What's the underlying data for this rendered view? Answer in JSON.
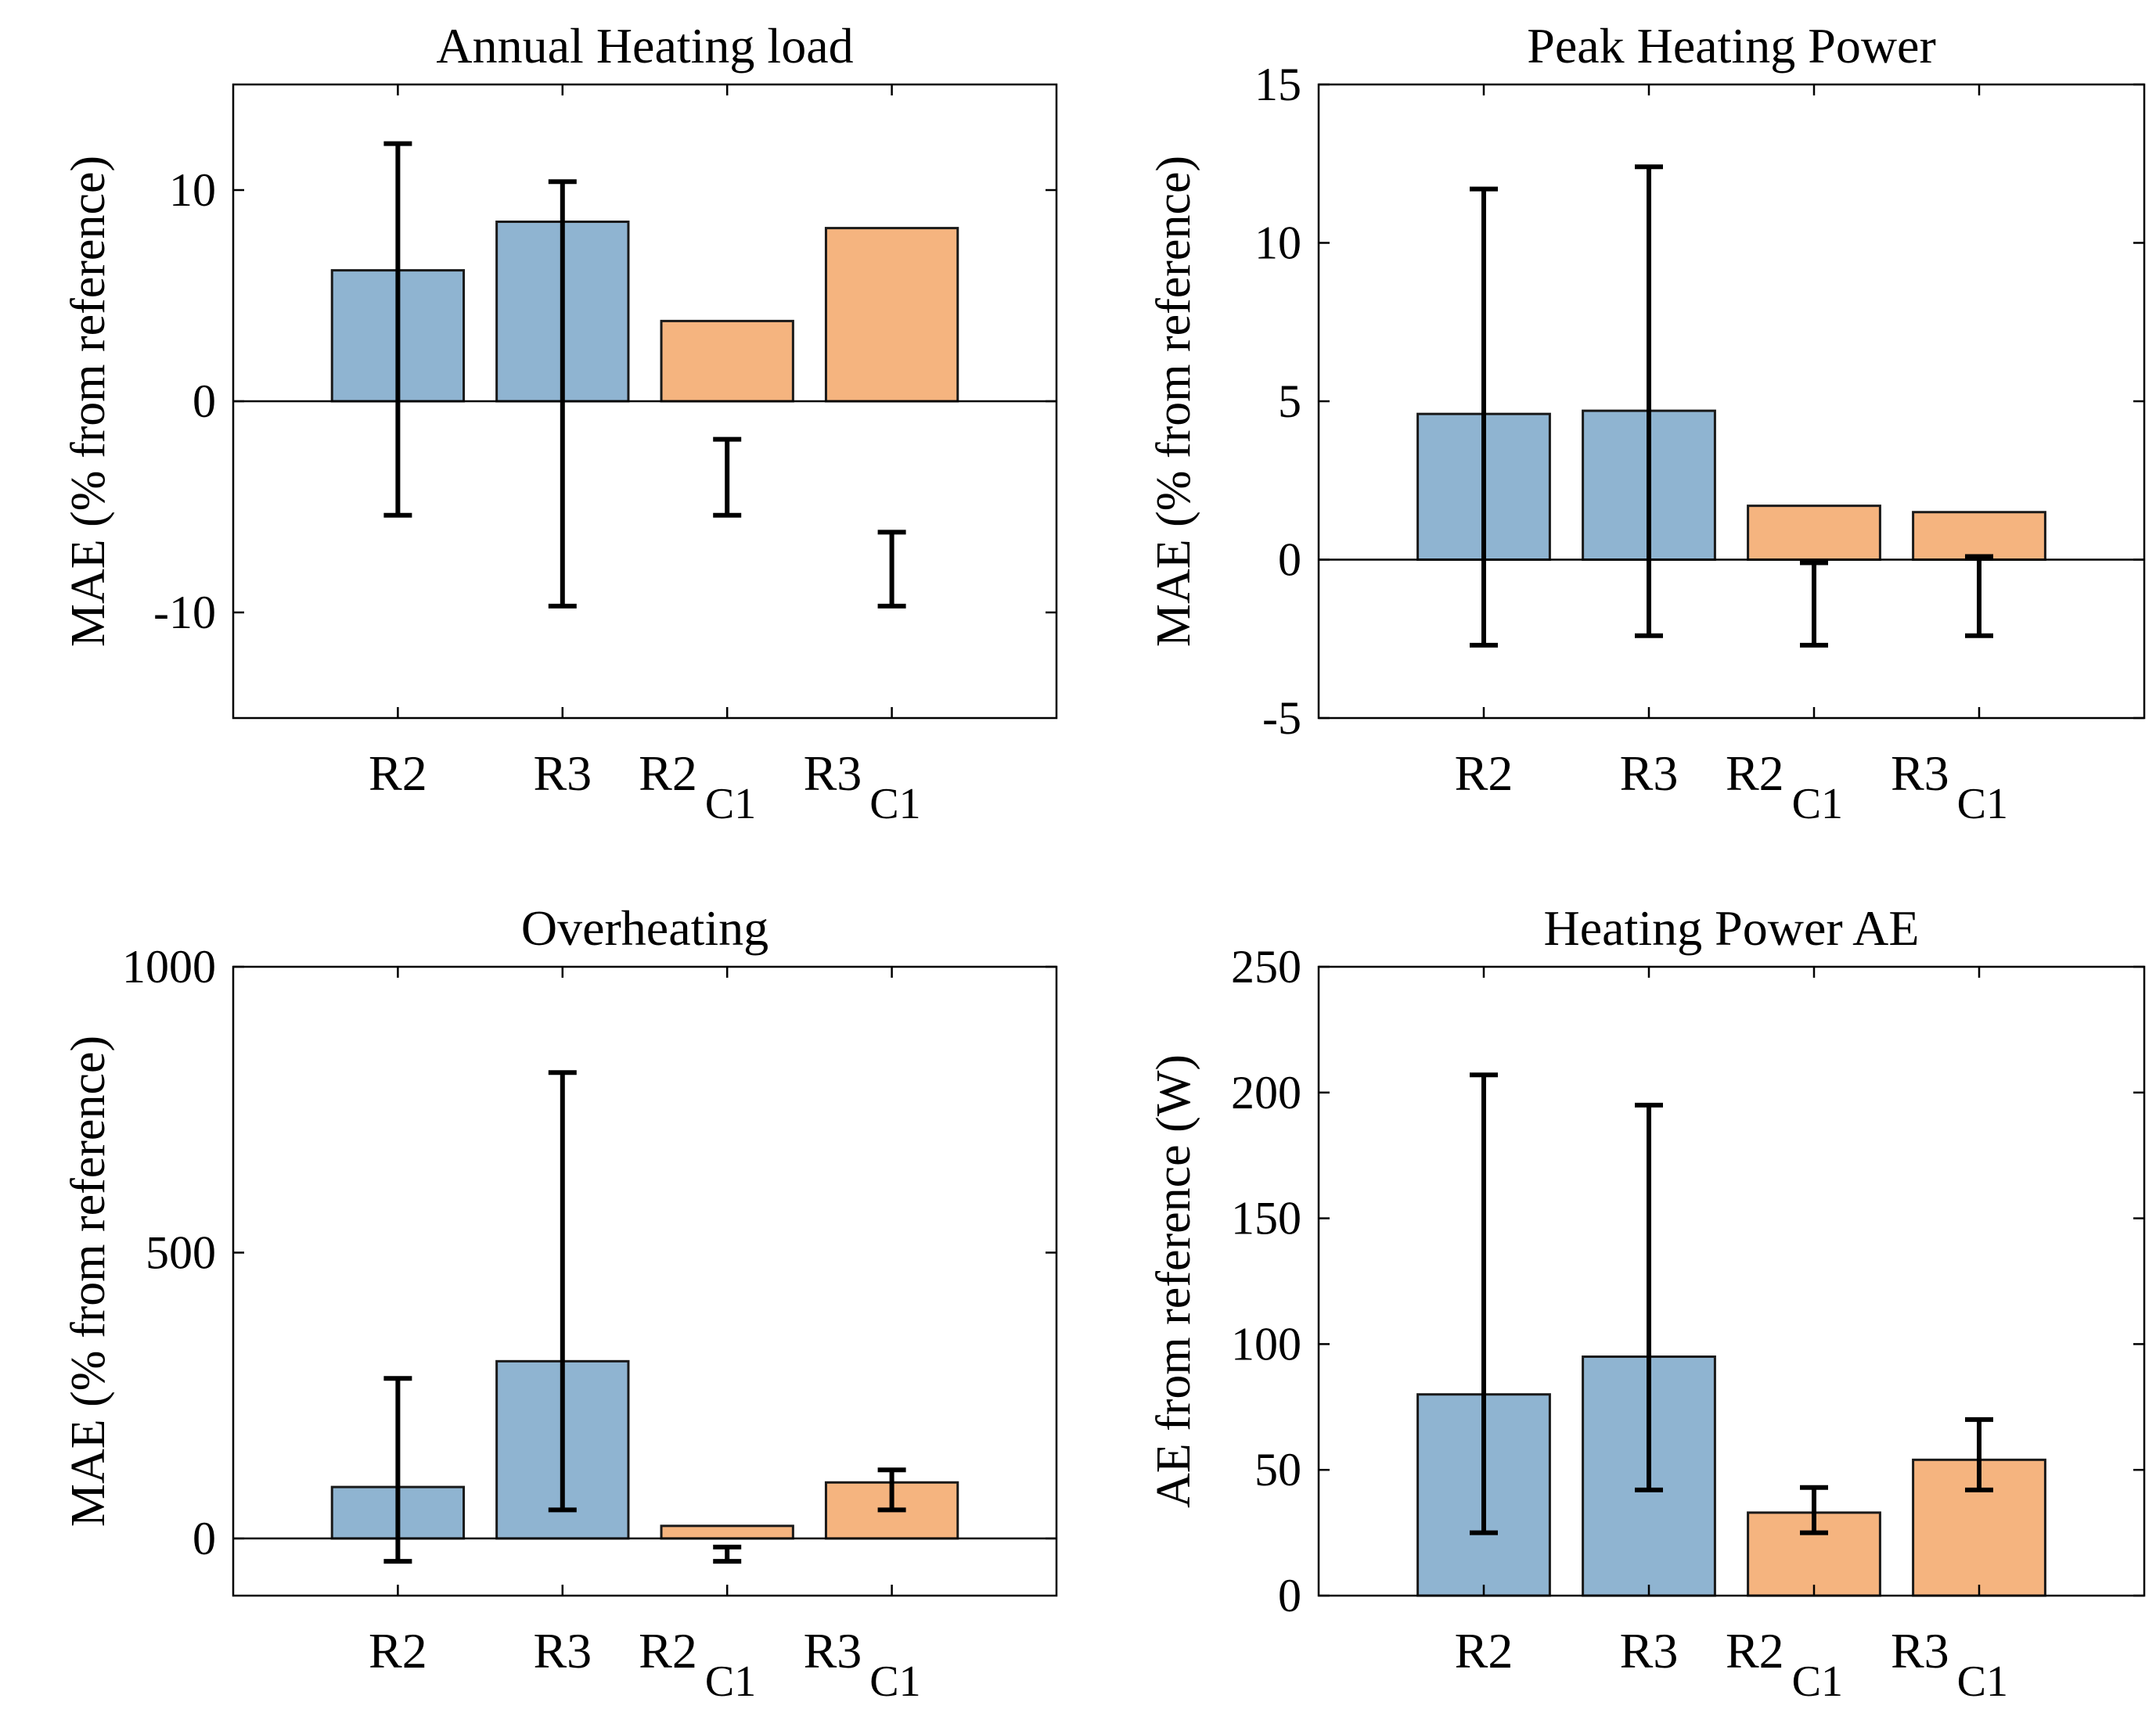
{
  "colors": {
    "blue": "#8fb4d1",
    "orange": "#f5b47f",
    "edge": "#1a1a1a",
    "axis": "#000000"
  },
  "chart_data": [
    {
      "type": "bar",
      "title": "Annual Heating load",
      "ylabel": "MAE (% from reference)",
      "ylim": [
        -15,
        15
      ],
      "yticks": [
        -10,
        0,
        10
      ],
      "ytick_labels": [
        "-10",
        "0",
        "10"
      ],
      "categories": [
        {
          "main": "R2",
          "sub": ""
        },
        {
          "main": "R3",
          "sub": ""
        },
        {
          "main": "R2",
          "sub": "C1"
        },
        {
          "main": "R3",
          "sub": "C1"
        }
      ],
      "values": [
        6.2,
        8.5,
        3.8,
        8.2
      ],
      "colors": [
        "blue",
        "blue",
        "orange",
        "orange"
      ],
      "errors": [
        [
          -5.4,
          12.2
        ],
        [
          -9.7,
          10.4
        ],
        [
          -5.4,
          -1.8
        ],
        [
          -9.7,
          -6.2
        ]
      ]
    },
    {
      "type": "bar",
      "title": "Peak Heating Power",
      "ylabel": "MAE (% from reference)",
      "ylim": [
        -5,
        15
      ],
      "yticks": [
        -5,
        0,
        5,
        10,
        15
      ],
      "ytick_labels": [
        "-5",
        "0",
        "5",
        "10",
        "15"
      ],
      "categories": [
        {
          "main": "R2",
          "sub": ""
        },
        {
          "main": "R3",
          "sub": ""
        },
        {
          "main": "R2",
          "sub": "C1"
        },
        {
          "main": "R3",
          "sub": "C1"
        }
      ],
      "values": [
        4.6,
        4.7,
        1.7,
        1.5
      ],
      "colors": [
        "blue",
        "blue",
        "orange",
        "orange"
      ],
      "errors": [
        [
          -2.7,
          11.7
        ],
        [
          -2.4,
          12.4
        ],
        [
          -2.7,
          -0.1
        ],
        [
          -2.4,
          0.1
        ]
      ]
    },
    {
      "type": "bar",
      "title": "Overheating",
      "ylabel": "MAE (% from reference)",
      "ylim": [
        -100,
        1000
      ],
      "yticks": [
        0,
        500,
        1000
      ],
      "ytick_labels": [
        "0",
        "500",
        "1000"
      ],
      "categories": [
        {
          "main": "R2",
          "sub": ""
        },
        {
          "main": "R3",
          "sub": ""
        },
        {
          "main": "R2",
          "sub": "C1"
        },
        {
          "main": "R3",
          "sub": "C1"
        }
      ],
      "values": [
        90,
        310,
        22,
        98
      ],
      "colors": [
        "blue",
        "blue",
        "orange",
        "orange"
      ],
      "errors": [
        [
          -40,
          280
        ],
        [
          50,
          815
        ],
        [
          -40,
          -15
        ],
        [
          50,
          120
        ]
      ]
    },
    {
      "type": "bar",
      "title": "Heating Power AE",
      "ylabel": "AE from reference (W)",
      "ylim": [
        0,
        250
      ],
      "yticks": [
        0,
        50,
        100,
        150,
        200,
        250
      ],
      "ytick_labels": [
        "0",
        "50",
        "100",
        "150",
        "200",
        "250"
      ],
      "categories": [
        {
          "main": "R2",
          "sub": ""
        },
        {
          "main": "R3",
          "sub": ""
        },
        {
          "main": "R2",
          "sub": "C1"
        },
        {
          "main": "R3",
          "sub": "C1"
        }
      ],
      "values": [
        80,
        95,
        33,
        54
      ],
      "colors": [
        "blue",
        "blue",
        "orange",
        "orange"
      ],
      "errors": [
        [
          25,
          207
        ],
        [
          42,
          195
        ],
        [
          25,
          43
        ],
        [
          42,
          70
        ]
      ]
    }
  ]
}
